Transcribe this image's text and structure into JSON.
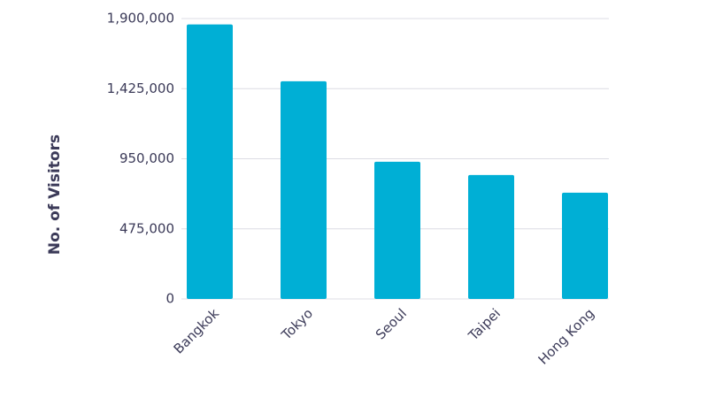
{
  "chart_data": {
    "type": "bar",
    "y_label": "No. of Visitors",
    "categories": [
      "Bangkok",
      "Tokyo",
      "Seoul",
      "Taipei",
      "Hong Kong"
    ],
    "values": [
      1860000,
      1475000,
      930000,
      840000,
      720000
    ],
    "color": "#00afd5",
    "ylim": [
      0,
      1900000
    ],
    "yticks": [
      0,
      {
        "value": 475000,
        "label": "475,000"
      },
      {
        "value": 950000,
        "label": "950,000"
      },
      {
        "value": 1425000,
        "label": "1,425,000"
      },
      {
        "value": 1900000,
        "label": "1,900,000"
      }
    ],
    "grid": true
  }
}
